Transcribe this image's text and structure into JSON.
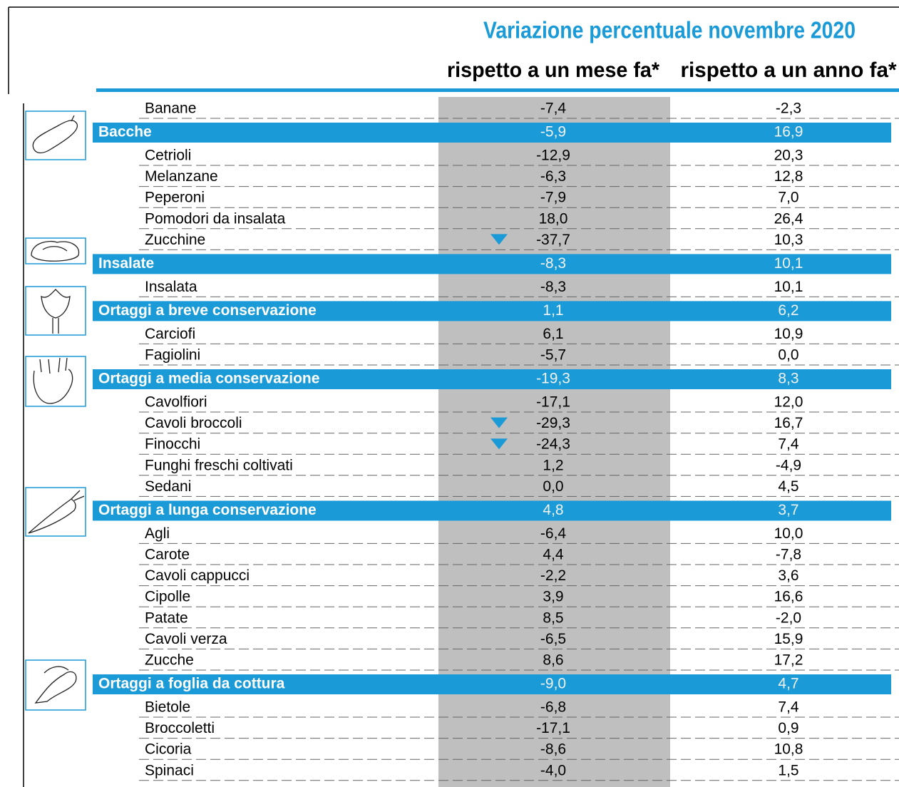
{
  "header": {
    "title": "Variazione percentuale novembre 2020",
    "columns": [
      "rispetto a un mese fa*",
      "rispetto a un anno fa*"
    ]
  },
  "table": {
    "rows": [
      {
        "kind": "item",
        "label": "Banane",
        "values": [
          "-7,4",
          "-2,3"
        ]
      },
      {
        "kind": "group",
        "label": "Bacche",
        "values": [
          "-5,9",
          "16,9"
        ]
      },
      {
        "kind": "item",
        "label": "Cetrioli",
        "values": [
          "-12,9",
          "20,3"
        ]
      },
      {
        "kind": "item",
        "label": "Melanzane",
        "values": [
          "-6,3",
          "12,8"
        ]
      },
      {
        "kind": "item",
        "label": "Peperoni",
        "values": [
          "-7,9",
          "7,0"
        ]
      },
      {
        "kind": "item",
        "label": "Pomodori da insalata",
        "values": [
          "18,0",
          "26,4"
        ]
      },
      {
        "kind": "item",
        "label": "Zucchine",
        "values": [
          "-37,7",
          "10,3"
        ],
        "arrow": "down"
      },
      {
        "kind": "group",
        "label": "Insalate",
        "values": [
          "-8,3",
          "10,1"
        ]
      },
      {
        "kind": "item",
        "label": "Insalata",
        "values": [
          "-8,3",
          "10,1"
        ]
      },
      {
        "kind": "group",
        "label": "Ortaggi a breve conservazione",
        "values": [
          "1,1",
          "6,2"
        ]
      },
      {
        "kind": "item",
        "label": "Carciofi",
        "values": [
          "6,1",
          "10,9"
        ]
      },
      {
        "kind": "item",
        "label": "Fagiolini",
        "values": [
          "-5,7",
          "0,0"
        ]
      },
      {
        "kind": "group",
        "label": "Ortaggi a media conservazione",
        "values": [
          "-19,3",
          "8,3"
        ]
      },
      {
        "kind": "item",
        "label": "Cavolfiori",
        "values": [
          "-17,1",
          "12,0"
        ]
      },
      {
        "kind": "item",
        "label": "Cavoli broccoli",
        "values": [
          "-29,3",
          "16,7"
        ],
        "arrow": "down"
      },
      {
        "kind": "item",
        "label": "Finocchi",
        "values": [
          "-24,3",
          "7,4"
        ],
        "arrow": "down"
      },
      {
        "kind": "item",
        "label": "Funghi freschi coltivati",
        "values": [
          "1,2",
          "-4,9"
        ]
      },
      {
        "kind": "item",
        "label": "Sedani",
        "values": [
          "0,0",
          "4,5"
        ]
      },
      {
        "kind": "group",
        "label": "Ortaggi a lunga conservazione",
        "values": [
          "4,8",
          "3,7"
        ]
      },
      {
        "kind": "item",
        "label": "Agli",
        "values": [
          "-6,4",
          "10,0"
        ]
      },
      {
        "kind": "item",
        "label": "Carote",
        "values": [
          "4,4",
          "-7,8"
        ]
      },
      {
        "kind": "item",
        "label": "Cavoli cappucci",
        "values": [
          "-2,2",
          "3,6"
        ]
      },
      {
        "kind": "item",
        "label": "Cipolle",
        "values": [
          "3,9",
          "16,6"
        ]
      },
      {
        "kind": "item",
        "label": "Patate",
        "values": [
          "8,5",
          "-2,0"
        ]
      },
      {
        "kind": "item",
        "label": "Cavoli verza",
        "values": [
          "-6,5",
          "15,9"
        ]
      },
      {
        "kind": "item",
        "label": "Zucche",
        "values": [
          "8,6",
          "17,2"
        ]
      },
      {
        "kind": "group",
        "label": "Ortaggi a foglia da cottura",
        "values": [
          "-9,0",
          "4,7"
        ]
      },
      {
        "kind": "item",
        "label": "Bietole",
        "values": [
          "-6,8",
          "7,4"
        ]
      },
      {
        "kind": "item",
        "label": "Broccoletti",
        "values": [
          "-17,1",
          "0,9"
        ]
      },
      {
        "kind": "item",
        "label": "Cicoria",
        "values": [
          "-8,6",
          "10,8"
        ]
      },
      {
        "kind": "item",
        "label": "Spinaci",
        "values": [
          "-4,0",
          "1,5"
        ]
      }
    ]
  }
}
